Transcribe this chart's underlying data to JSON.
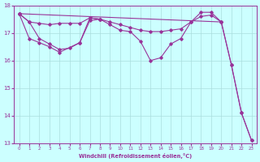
{
  "xlabel": "Windchill (Refroidissement éolien,°C)",
  "bg_color": "#ccffff",
  "grid_color": "#aadddd",
  "line_color": "#993399",
  "ylim": [
    13,
    18
  ],
  "yticks": [
    13,
    14,
    15,
    16,
    17,
    18
  ],
  "xlim": [
    -0.5,
    23.5
  ],
  "seriesA_x": [
    0,
    1,
    2,
    3,
    4,
    5,
    6,
    7,
    8,
    9,
    10,
    11,
    12,
    13,
    14,
    15,
    16,
    17,
    18,
    19,
    20
  ],
  "seriesA_y": [
    17.7,
    17.4,
    17.35,
    17.3,
    17.35,
    17.35,
    17.35,
    17.55,
    17.5,
    17.4,
    17.3,
    17.2,
    17.1,
    17.05,
    17.05,
    17.1,
    17.15,
    17.4,
    17.6,
    17.65,
    17.4
  ],
  "seriesB_x": [
    0,
    1,
    2,
    3,
    4,
    5,
    6,
    7,
    8,
    9,
    10,
    11,
    12,
    13,
    14,
    15,
    16,
    17,
    18,
    19,
    20,
    21,
    22,
    23
  ],
  "seriesB_y": [
    17.7,
    17.4,
    16.8,
    16.6,
    16.4,
    16.45,
    16.65,
    17.55,
    17.5,
    17.3,
    17.1,
    17.05,
    16.7,
    16.0,
    16.1,
    16.6,
    16.8,
    17.4,
    17.75,
    17.75,
    17.4,
    15.85,
    14.1,
    13.1
  ],
  "seriesC_x": [
    0,
    20,
    21,
    22,
    23
  ],
  "seriesC_y": [
    17.7,
    17.4,
    15.85,
    14.1,
    13.1
  ],
  "seriesD_x": [
    0,
    1,
    2,
    3,
    4,
    6,
    7,
    8
  ],
  "seriesD_y": [
    17.7,
    16.8,
    16.65,
    16.5,
    16.3,
    16.65,
    17.45,
    17.5
  ]
}
